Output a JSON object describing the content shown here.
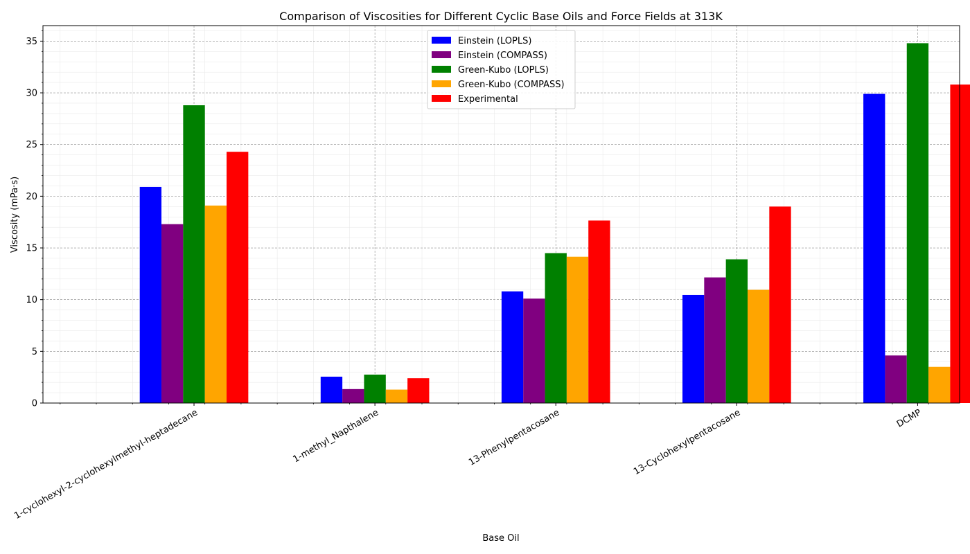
{
  "chart_data": {
    "type": "bar",
    "title": "Comparison of Viscosities for Different Cyclic Base Oils and Force Fields at 313K",
    "xlabel": "Base Oil",
    "ylabel": "Viscosity (mPa·s)",
    "ylim": [
      0,
      36.5
    ],
    "yticks": [
      0,
      5,
      10,
      15,
      20,
      25,
      30,
      35
    ],
    "grid": true,
    "legend_position": "top-center",
    "categories": [
      "1-cyclohexyl-2-cyclohexylmethyl-heptadecane",
      "1-methyl_Napthalene",
      "13-Phenylpentacosane",
      "13-Cyclohexylpentacosane",
      "DCMP"
    ],
    "series": [
      {
        "name": "Einstein (LOPLS)",
        "color": "#0000ff",
        "values": [
          20.9,
          2.55,
          10.8,
          10.45,
          29.9
        ]
      },
      {
        "name": "Einstein (COMPASS)",
        "color": "#800080",
        "values": [
          17.3,
          1.35,
          10.1,
          12.15,
          4.6
        ]
      },
      {
        "name": "Green-Kubo (LOPLS)",
        "color": "#008000",
        "values": [
          28.8,
          2.75,
          14.5,
          13.9,
          34.8
        ]
      },
      {
        "name": "Green-Kubo (COMPASS)",
        "color": "#ffa500",
        "values": [
          19.1,
          1.3,
          14.15,
          10.95,
          3.5
        ]
      },
      {
        "name": "Experimental",
        "color": "#ff0000",
        "values": [
          24.3,
          2.4,
          17.65,
          19.0,
          30.8
        ]
      }
    ]
  }
}
